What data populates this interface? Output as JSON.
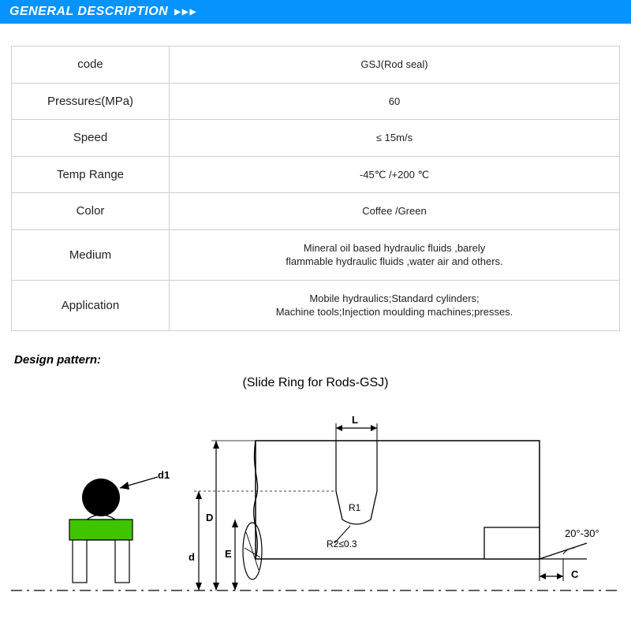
{
  "header": {
    "title": "GENERAL DESCRIPTION",
    "arrows": "▶▶▶"
  },
  "table": {
    "rows": [
      {
        "label": "code",
        "value": "GSJ(Rod seal)"
      },
      {
        "label": "Pressure≤(MPa)",
        "value": "60"
      },
      {
        "label": "Speed",
        "value": "≤ 15m/s"
      },
      {
        "label": "Temp Range",
        "value": "-45℃ /+200 ℃"
      },
      {
        "label": "Color",
        "value": "Coffee /Green"
      },
      {
        "label": "Medium",
        "value": "Mineral oil based hydraulic fluids ,barely\nflammable hydraulic fluids ,water air and others."
      },
      {
        "label": "Application",
        "value": "Mobile hydraulics;Standard cylinders;\nMachine tools;Injection moulding machines;presses."
      }
    ]
  },
  "design": {
    "label": "Design pattern:",
    "title": "(Slide Ring for Rods-GSJ)"
  },
  "diagram": {
    "colors": {
      "stroke": "#000000",
      "fillGreen": "#3fc400",
      "fillBlack": "#000000",
      "bg": "#ffffff",
      "centerline": "#000000"
    },
    "labels": {
      "d1": "d1",
      "L": "L",
      "R1": "R1",
      "R2": "R2≤0.3",
      "D": "D",
      "d": "d",
      "E": "E",
      "angle": "20°-30°",
      "C": "C"
    }
  }
}
